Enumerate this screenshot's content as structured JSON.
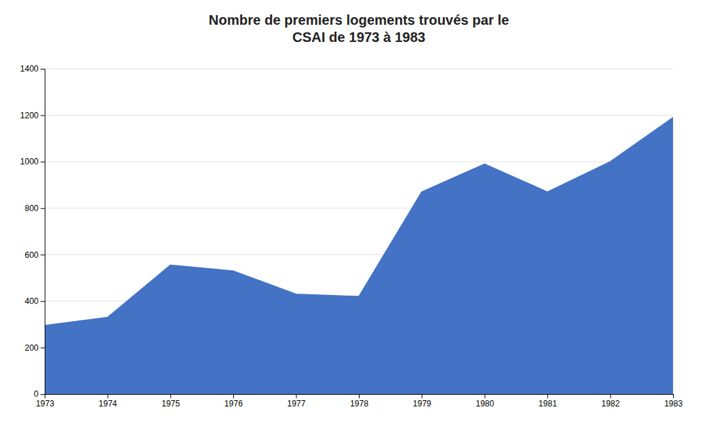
{
  "chart_data": {
    "type": "area",
    "title": "Nombre de premiers logements trouvés par le\nCSAI de 1973 à 1983",
    "x": [
      1973,
      1974,
      1975,
      1976,
      1977,
      1978,
      1979,
      1980,
      1981,
      1982,
      1983
    ],
    "values": [
      295,
      330,
      555,
      530,
      430,
      420,
      870,
      990,
      870,
      1000,
      1190
    ],
    "color": "#4472C4",
    "xlim": [
      1973,
      1983
    ],
    "xticks": [
      1973,
      1974,
      1975,
      1976,
      1977,
      1978,
      1979,
      1980,
      1981,
      1982,
      1983
    ],
    "ylim": [
      0,
      1400
    ],
    "yticks": [
      0,
      200,
      400,
      600,
      800,
      1000,
      1200,
      1400
    ],
    "grid": true
  }
}
